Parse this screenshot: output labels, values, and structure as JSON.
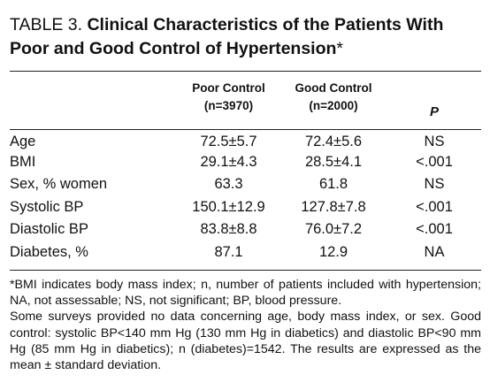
{
  "title": {
    "prefix": "TABLE 3. ",
    "text": "Clinical Characteristics of the Patients With Poor and Good Control of Hypertension",
    "marker": "*"
  },
  "table": {
    "columns": [
      {
        "label": "",
        "sublabel": ""
      },
      {
        "label": "Poor Control",
        "sublabel": "(n=3970)"
      },
      {
        "label": "Good Control",
        "sublabel": "(n=2000)"
      },
      {
        "label": "P",
        "sublabel": ""
      }
    ],
    "rows": [
      {
        "label": "Age",
        "poor": "72.5±5.7",
        "good": "72.4±5.6",
        "p": "NS"
      },
      {
        "label": "BMI",
        "poor": "29.1±4.3",
        "good": "28.5±4.1",
        "p": "<.001"
      },
      {
        "label": "Sex, % women",
        "poor": "63.3",
        "good": "61.8",
        "p": "NS"
      },
      {
        "label": "Systolic BP",
        "poor": "150.1±12.9",
        "good": "127.8±7.8",
        "p": "<.001"
      },
      {
        "label": "Diastolic BP",
        "poor": "83.8±8.8",
        "good": "76.0±7.2",
        "p": "<.001"
      },
      {
        "label": "Diabetes, %",
        "poor": "87.1",
        "good": "12.9",
        "p": "NA"
      }
    ]
  },
  "footnotes": [
    "*BMI indicates body mass index; n, number of patients included with hypertension; NA, not assessable; NS, not significant; BP, blood pressure.",
    "Some surveys provided no data concerning age, body mass index, or sex. Good control: systolic BP<140 mm Hg (130 mm Hg in diabetics) and diastolic BP<90 mm Hg (85 mm Hg in diabetics); n (diabetes)=1542. The results are expressed as the mean ± standard deviation."
  ]
}
